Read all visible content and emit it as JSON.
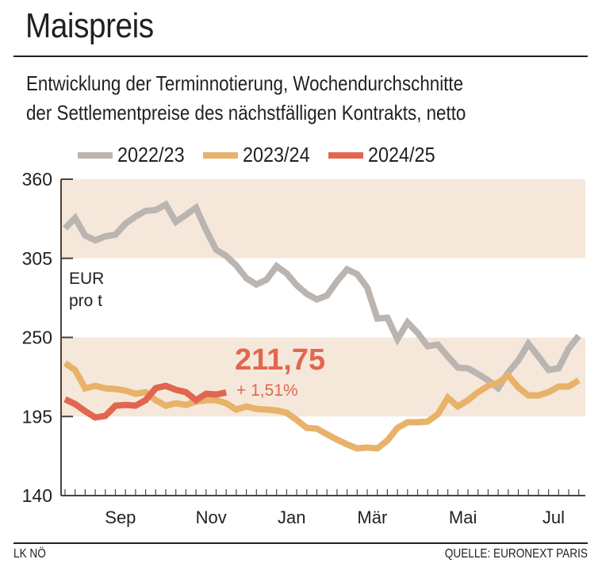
{
  "header": {
    "title": "Maispreis",
    "subtitle_line1": "Entwicklung der Terminnotierung, Wochendurchschnitte",
    "subtitle_line2": "der Settlementpreise des nächstfälligen Kontrakts, netto"
  },
  "footer": {
    "left": "LK NÖ",
    "right": "QUELLE: EURONEXT PARIS"
  },
  "colors": {
    "band": "#f5e8da",
    "axis": "#4a4341",
    "s2022": "#bbb5b1",
    "s2023": "#e8b26b",
    "s2024": "#e2664f",
    "annotation": "#e2664f"
  },
  "chart_data": {
    "type": "line",
    "title": "Maispreis",
    "subtitle": "Entwicklung der Terminnotierung, Wochendurchschnitte der Settlementpreise des nächstfälligen Kontrakts, netto",
    "xlabel": "",
    "ylabel": "EUR pro t",
    "ylim": [
      140,
      360
    ],
    "yticks": [
      140,
      195,
      250,
      305,
      360
    ],
    "ytick_labels": [
      "140",
      "195",
      "250",
      "305",
      "360"
    ],
    "bands": [
      [
        195,
        250
      ],
      [
        305,
        360
      ]
    ],
    "x_weeks": 52,
    "month_labels": [
      {
        "label": "Sep",
        "week": 5.5
      },
      {
        "label": "Nov",
        "week": 14.5
      },
      {
        "label": "Jan",
        "week": 22.5
      },
      {
        "label": "Mär",
        "week": 30.5
      },
      {
        "label": "Mai",
        "week": 39.5
      },
      {
        "label": "Jul",
        "week": 48.5
      }
    ],
    "legend_position": "top",
    "grid": false,
    "series": [
      {
        "name": "2022/23",
        "color_key": "s2022",
        "values": [
          325.8,
          333,
          320.8,
          317.5,
          320.3,
          321.4,
          329.1,
          334.1,
          338,
          338.5,
          342.4,
          330.3,
          335.2,
          340.2,
          324.7,
          311,
          306.6,
          300,
          291.2,
          286.8,
          290.1,
          299.5,
          294.5,
          286.3,
          280.2,
          276.4,
          279.1,
          289,
          297.3,
          294,
          284.6,
          263.1,
          263.7,
          248.8,
          260.4,
          253.2,
          243.9,
          245,
          236.7,
          229,
          228.5,
          224.6,
          220.2,
          214.7,
          225.7,
          234,
          245.6,
          236.7,
          227.4,
          228.5,
          242.3,
          251.1
        ]
      },
      {
        "name": "2023/24",
        "color_key": "s2023",
        "values": [
          232.2,
          227.3,
          214.6,
          216.3,
          214.6,
          214.1,
          213,
          210.8,
          211.9,
          206.4,
          202.5,
          204.2,
          203.1,
          205.3,
          206.4,
          206.4,
          204.2,
          199.8,
          202,
          200.3,
          199.8,
          199.2,
          197.6,
          192.6,
          187.1,
          186.6,
          182.7,
          178.9,
          175.6,
          172.8,
          173.4,
          172.8,
          178.3,
          187.1,
          191,
          191,
          191.5,
          196.5,
          208.1,
          202,
          206.4,
          211.9,
          216.3,
          218.5,
          223.5,
          215.2,
          209.7,
          209.7,
          211.9,
          215.8,
          215.8,
          220.2
        ]
      },
      {
        "name": "2024/25",
        "color_key": "s2024",
        "values": [
          207,
          203.7,
          198.7,
          194.3,
          195.4,
          202.5,
          203.1,
          202.5,
          206.4,
          214.7,
          216.3,
          213.6,
          211.9,
          206.4,
          210.8,
          210.3,
          211.75
        ]
      }
    ],
    "annotations": [
      {
        "text": "211,75",
        "series": "2024/25",
        "kind": "last-value"
      },
      {
        "text": "+ 1,51%",
        "series": "2024/25",
        "kind": "change"
      }
    ],
    "unit_label_line1": "EUR",
    "unit_label_line2": "pro t"
  }
}
